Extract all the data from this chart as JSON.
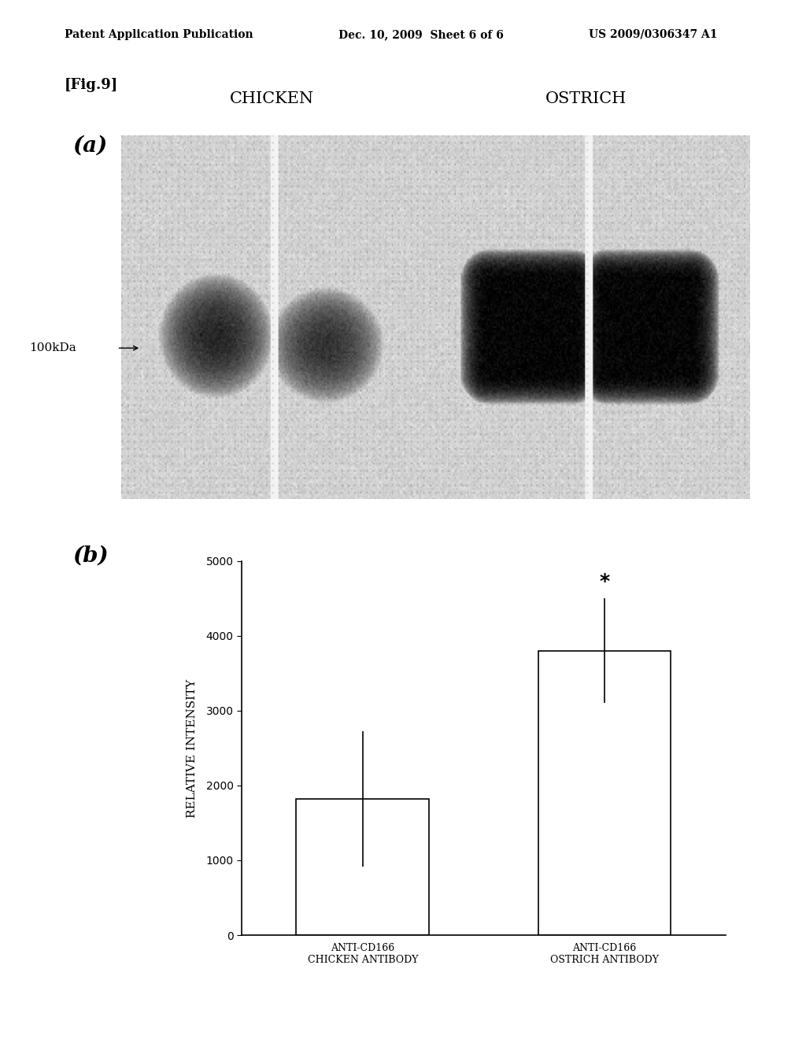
{
  "header_left": "Patent Application Publication",
  "header_middle": "Dec. 10, 2009  Sheet 6 of 6",
  "header_right": "US 2009/0306347 A1",
  "fig_label": "[Fig.9]",
  "panel_a_label": "(a)",
  "panel_b_label": "(b)",
  "chicken_label": "CHICKEN",
  "ostrich_label": "OSTRICH",
  "kda_label": "100kDa",
  "bar_values": [
    1820,
    3800
  ],
  "bar_errors": [
    900,
    700
  ],
  "bar_colors": [
    "#ffffff",
    "#ffffff"
  ],
  "bar_edge_color": "#000000",
  "bar_categories": [
    "ANTI-CD166\nCHICKEN ANTIBODY",
    "ANTI-CD166\nOSTRICH ANTIBODY"
  ],
  "ylabel": "RELATIVE INTENSITY",
  "ylim": [
    0,
    5000
  ],
  "yticks": [
    0,
    1000,
    2000,
    3000,
    4000,
    5000
  ],
  "star_label": "*",
  "background_color": "#ffffff",
  "text_color": "#000000"
}
